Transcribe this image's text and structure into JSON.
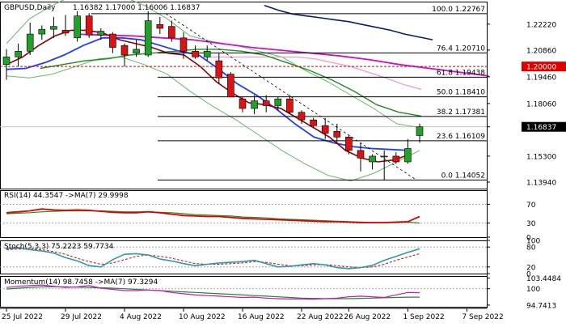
{
  "chart_data": {
    "type": "candlestick",
    "title": "GBPUSD,Daily",
    "ohlc_text": "1.16382 1.17000 1.16006 1.16837",
    "last_price_label": "1.16837",
    "round_level_label": "1.20000",
    "colors": {
      "bull": "#22a02a",
      "bear": "#d81414",
      "ma_magenta": "#cc10cc",
      "ma_pink": "#f0a0d0",
      "ma_navy": "#0a1e6e",
      "ma_blue": "#1e3cff",
      "ma_green": "#1e8c1e",
      "ma_maroon": "#8b0000",
      "bollinger": "#66bb66",
      "fib": "#000000",
      "level_red": "#e00000"
    },
    "candles": [
      {
        "o": 1.201,
        "h": 1.209,
        "l": 1.193,
        "c": 1.205
      },
      {
        "o": 1.205,
        "h": 1.212,
        "l": 1.2,
        "c": 1.208
      },
      {
        "o": 1.208,
        "h": 1.223,
        "l": 1.206,
        "c": 1.217
      },
      {
        "o": 1.217,
        "h": 1.2215,
        "l": 1.214,
        "c": 1.2195
      },
      {
        "o": 1.2195,
        "h": 1.226,
        "l": 1.215,
        "c": 1.221
      },
      {
        "o": 1.219,
        "h": 1.227,
        "l": 1.216,
        "c": 1.2175
      },
      {
        "o": 1.215,
        "h": 1.229,
        "l": 1.213,
        "c": 1.2265
      },
      {
        "o": 1.2265,
        "h": 1.228,
        "l": 1.215,
        "c": 1.2165
      },
      {
        "o": 1.2165,
        "h": 1.22,
        "l": 1.214,
        "c": 1.2185
      },
      {
        "o": 1.217,
        "h": 1.218,
        "l": 1.207,
        "c": 1.21
      },
      {
        "o": 1.211,
        "h": 1.212,
        "l": 1.2,
        "c": 1.206
      },
      {
        "o": 1.207,
        "h": 1.214,
        "l": 1.205,
        "c": 1.209
      },
      {
        "o": 1.206,
        "h": 1.229,
        "l": 1.205,
        "c": 1.224
      },
      {
        "o": 1.222,
        "h": 1.226,
        "l": 1.217,
        "c": 1.22
      },
      {
        "o": 1.221,
        "h": 1.224,
        "l": 1.213,
        "c": 1.215
      },
      {
        "o": 1.215,
        "h": 1.218,
        "l": 1.204,
        "c": 1.208
      },
      {
        "o": 1.208,
        "h": 1.211,
        "l": 1.204,
        "c": 1.205
      },
      {
        "o": 1.205,
        "h": 1.211,
        "l": 1.203,
        "c": 1.208
      },
      {
        "o": 1.203,
        "h": 1.207,
        "l": 1.191,
        "c": 1.194
      },
      {
        "o": 1.196,
        "h": 1.197,
        "l": 1.184,
        "c": 1.184
      },
      {
        "o": 1.183,
        "h": 1.184,
        "l": 1.176,
        "c": 1.178
      },
      {
        "o": 1.178,
        "h": 1.185,
        "l": 1.175,
        "c": 1.182
      },
      {
        "o": 1.182,
        "h": 1.185,
        "l": 1.176,
        "c": 1.1795
      },
      {
        "o": 1.1795,
        "h": 1.184,
        "l": 1.177,
        "c": 1.183
      },
      {
        "o": 1.183,
        "h": 1.185,
        "l": 1.175,
        "c": 1.176
      },
      {
        "o": 1.176,
        "h": 1.177,
        "l": 1.17,
        "c": 1.172
      },
      {
        "o": 1.172,
        "h": 1.173,
        "l": 1.168,
        "c": 1.169
      },
      {
        "o": 1.169,
        "h": 1.173,
        "l": 1.162,
        "c": 1.165
      },
      {
        "o": 1.166,
        "h": 1.17,
        "l": 1.16,
        "c": 1.163
      },
      {
        "o": 1.163,
        "h": 1.164,
        "l": 1.154,
        "c": 1.156
      },
      {
        "o": 1.156,
        "h": 1.16,
        "l": 1.145,
        "c": 1.152
      },
      {
        "o": 1.15,
        "h": 1.154,
        "l": 1.146,
        "c": 1.153
      },
      {
        "o": 1.153,
        "h": 1.156,
        "l": 1.1405,
        "c": 1.153
      },
      {
        "o": 1.153,
        "h": 1.155,
        "l": 1.149,
        "c": 1.15
      },
      {
        "o": 1.15,
        "h": 1.162,
        "l": 1.149,
        "c": 1.157
      },
      {
        "o": 1.1638,
        "h": 1.17,
        "l": 1.1601,
        "c": 1.1684
      }
    ],
    "moving_averages": [
      {
        "name": "ma_navy",
        "values": [
          1.232,
          1.2295,
          1.2275,
          1.2265,
          1.2255,
          1.2245,
          1.2235,
          1.222,
          1.2205,
          1.219,
          1.217,
          1.2155,
          1.214
        ]
      },
      {
        "name": "ma_magenta",
        "values": [
          1.217,
          1.2165,
          1.216,
          1.215,
          1.214,
          1.212,
          1.21,
          1.2085,
          1.207,
          1.2055,
          1.2035,
          1.201,
          1.199,
          1.197,
          1.195
        ]
      },
      {
        "name": "ma_pink",
        "values": [
          1.205,
          1.205,
          1.205,
          1.205,
          1.205,
          1.205,
          1.204,
          1.202,
          1.2,
          1.197,
          1.194,
          1.1905,
          1.188
        ]
      },
      {
        "name": "ma_green",
        "values": [
          1.199,
          1.201,
          1.203,
          1.204,
          1.206,
          1.207,
          1.208,
          1.209,
          1.209,
          1.208,
          1.206,
          1.202,
          1.198,
          1.193,
          1.187,
          1.18,
          1.176,
          1.174
        ]
      },
      {
        "name": "ma_blue",
        "values": [
          1.1985,
          1.199,
          1.202,
          1.206,
          1.211,
          1.215,
          1.215,
          1.214,
          1.211,
          1.208,
          1.206,
          1.199,
          1.191,
          1.185,
          1.178,
          1.17,
          1.163,
          1.16,
          1.158,
          1.157,
          1.1565,
          1.156
        ]
      },
      {
        "name": "ma_maroon",
        "values": [
          1.201,
          1.205,
          1.211,
          1.216,
          1.219,
          1.219,
          1.2175,
          1.214,
          1.212,
          1.21,
          1.207,
          1.206,
          1.2,
          1.192,
          1.186,
          1.181,
          1.18,
          1.178,
          1.173,
          1.168,
          1.163,
          1.156,
          1.152,
          1.15,
          1.151,
          1.154
        ]
      }
    ],
    "bollinger": {
      "upper": [
        1.212,
        1.225,
        1.232,
        1.238,
        1.24,
        1.237,
        1.232,
        1.225,
        1.216,
        1.213,
        1.211,
        1.208,
        1.205,
        1.198,
        1.192,
        1.185,
        1.178,
        1.17,
        1.168
      ],
      "lower": [
        1.195,
        1.194,
        1.196,
        1.2,
        1.204,
        1.205,
        1.201,
        1.196,
        1.187,
        1.179,
        1.172,
        1.164,
        1.156,
        1.149,
        1.143,
        1.14,
        1.144,
        1.15,
        1.156
      ]
    },
    "price_axis": {
      "ylim": [
        1.136,
        1.234
      ],
      "ticks": [
        "1.22220",
        "1.20860",
        "1.19460",
        "1.18060",
        "1.16837",
        "1.15300",
        "1.13940"
      ],
      "tick_values": [
        1.2222,
        1.2086,
        1.1946,
        1.1806,
        1.16837,
        1.153,
        1.1394
      ]
    },
    "round_level": 1.2,
    "fib_levels": [
      {
        "label": "100.0 1.22767",
        "price": 1.22767
      },
      {
        "label": "76.4 1.20710",
        "price": 1.2071
      },
      {
        "label": "61.8 1.19438",
        "price": 1.19438
      },
      {
        "label": "50.0 1.18410",
        "price": 1.1841
      },
      {
        "label": "38.2 1.17381",
        "price": 1.17381
      },
      {
        "label": "23.6 1.16109",
        "price": 1.16109
      },
      {
        "label": "0.0 1.14052",
        "price": 1.14052
      }
    ],
    "x_labels": [
      "25 Jul 2022",
      "29 Jul 2022",
      "4 Aug 2022",
      "10 Aug 2022",
      "16 Aug 2022",
      "22 Aug 2022",
      "26 Aug 2022",
      "1 Sep 2022",
      "7 Sep 2022"
    ],
    "x_label_bars": [
      0,
      5,
      10,
      15,
      20,
      25,
      29,
      34,
      39
    ],
    "rsi": {
      "label": "RSI(14) 44.3547 ->MA(7) 29.9998",
      "ylim": [
        0,
        100
      ],
      "levels": [
        70,
        30
      ],
      "ticks": [
        "70",
        "30",
        "0"
      ],
      "rsi_values": [
        52,
        54,
        56,
        60,
        58,
        57,
        58,
        57,
        55,
        53,
        52,
        52,
        54,
        52,
        49,
        46,
        45,
        44,
        44,
        42,
        40,
        39,
        38,
        37,
        36,
        35,
        34,
        33,
        33,
        32,
        31,
        31,
        31,
        32,
        33,
        44
      ],
      "ma_values": [
        50,
        51,
        52,
        54,
        55,
        56,
        56,
        56,
        56,
        55,
        54,
        54,
        54,
        53,
        52,
        50,
        48,
        47,
        46,
        45,
        43,
        42,
        41,
        39,
        38,
        37,
        36,
        35,
        34,
        33,
        32,
        31,
        31,
        31,
        32,
        30
      ]
    },
    "stoch": {
      "label": "Stoch(5,3,3) 75.2223 59.7734",
      "ylim": [
        0,
        100
      ],
      "levels": [
        80,
        20
      ],
      "ticks": [
        "100",
        "80",
        "20",
        "0"
      ],
      "k_values": [
        75,
        78,
        72,
        68,
        62,
        48,
        38,
        24,
        20,
        42,
        58,
        60,
        56,
        44,
        38,
        30,
        24,
        28,
        32,
        34,
        36,
        40,
        30,
        20,
        22,
        26,
        30,
        26,
        18,
        15,
        18,
        25,
        40,
        52,
        64,
        75
      ],
      "d_values": [
        72,
        74,
        74,
        72,
        66,
        58,
        46,
        36,
        28,
        32,
        42,
        52,
        56,
        52,
        46,
        38,
        30,
        28,
        28,
        30,
        32,
        36,
        34,
        28,
        24,
        24,
        26,
        27,
        24,
        20,
        18,
        20,
        28,
        40,
        50,
        60
      ]
    },
    "momentum": {
      "label": "Momentum(14) 98.7458 ->MA(7) 97.3294",
      "ylim": [
        94.2,
        104.1
      ],
      "levels": [
        100
      ],
      "ticks": [
        "103.4484",
        "100",
        "94.7413"
      ],
      "mom_values": [
        100.4,
        100.8,
        101.0,
        101.2,
        100.8,
        100.4,
        100.6,
        101.0,
        100.2,
        99.8,
        99.4,
        99.4,
        99.6,
        99.4,
        98.8,
        98.4,
        98.0,
        97.8,
        97.6,
        97.4,
        97.2,
        97.3,
        97.0,
        96.8,
        96.7,
        96.7,
        96.6,
        96.8,
        97.0,
        97.4,
        97.6,
        97.4,
        97.2,
        98.0,
        98.8,
        98.7
      ],
      "ma_values": [
        99.9,
        100.2,
        100.4,
        100.6,
        100.7,
        100.6,
        100.5,
        100.4,
        100.3,
        100.2,
        100.0,
        99.8,
        99.6,
        99.4,
        99.2,
        99.0,
        98.8,
        98.6,
        98.4,
        98.2,
        98.0,
        97.8,
        97.6,
        97.4,
        97.2,
        97.0,
        96.9,
        96.8,
        96.8,
        96.8,
        96.9,
        97.0,
        97.1,
        97.2,
        97.3,
        97.3
      ]
    }
  }
}
